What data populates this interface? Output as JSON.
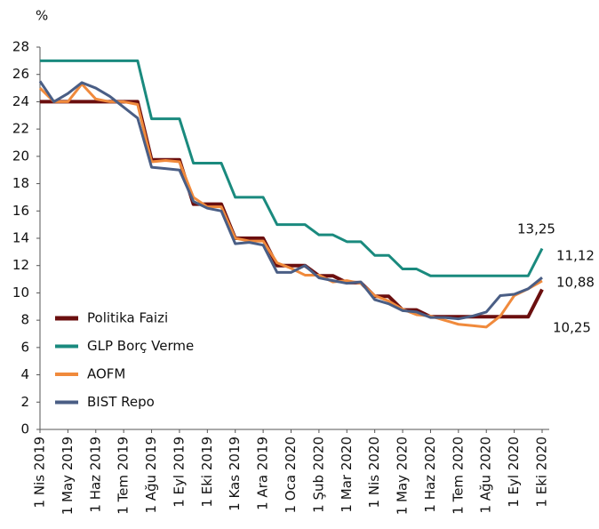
{
  "chart_data": {
    "type": "line",
    "y_label": "%",
    "categories": [
      "1 Nis 2019",
      null,
      "1 May 2019",
      null,
      "1 Haz 2019",
      null,
      "1 Tem 2019",
      null,
      "1 Ağu 2019",
      null,
      "1 Eyl 2019",
      null,
      "1 Eki 2019",
      null,
      "1 Kas 2019",
      null,
      "1 Ara 2019",
      null,
      "1 Oca 2020",
      null,
      "1 Şub 2020",
      null,
      "1 Mar 2020",
      null,
      "1 Nis 2020",
      null,
      "1 May 2020",
      null,
      "1 Haz 2020",
      null,
      "1 Tem 2020",
      null,
      "1 Ağu 2020",
      null,
      "1 Eyl 2020",
      null,
      "1 Eki 2020"
    ],
    "series": [
      {
        "name": "Politika Faizi",
        "color": "#6b0f0f",
        "width": 4,
        "values": [
          24,
          24,
          24,
          24,
          24,
          24,
          24,
          24,
          19.75,
          19.75,
          19.75,
          16.5,
          16.5,
          16.5,
          14,
          14,
          14,
          12,
          12,
          12,
          11.25,
          11.25,
          10.75,
          10.75,
          9.75,
          9.75,
          8.75,
          8.75,
          8.25,
          8.25,
          8.25,
          8.25,
          8.25,
          8.25,
          8.25,
          8.25,
          10.25
        ],
        "value_labels": [
          null,
          null,
          null,
          null,
          null,
          null,
          null,
          null,
          null,
          null,
          null,
          null,
          null,
          null,
          null,
          null,
          null,
          null,
          null,
          null,
          null,
          null,
          null,
          null,
          null,
          null,
          null,
          null,
          null,
          null,
          null,
          null,
          null,
          null,
          null,
          null,
          "10,25"
        ]
      },
      {
        "name": "GLP Borç Verme",
        "color": "#1a8a7e",
        "width": 3,
        "values": [
          27,
          27,
          27,
          27,
          27,
          27,
          27,
          27,
          22.75,
          22.75,
          22.75,
          19.5,
          19.5,
          19.5,
          17,
          17,
          17,
          15,
          15,
          15,
          14.25,
          14.25,
          13.75,
          13.75,
          12.75,
          12.75,
          11.75,
          11.75,
          11.25,
          11.25,
          11.25,
          11.25,
          11.25,
          11.25,
          11.25,
          11.25,
          13.25
        ],
        "value_labels": [
          null,
          null,
          null,
          null,
          null,
          null,
          null,
          null,
          null,
          null,
          null,
          null,
          null,
          null,
          null,
          null,
          null,
          null,
          null,
          null,
          null,
          null,
          null,
          null,
          null,
          null,
          null,
          null,
          null,
          null,
          null,
          null,
          null,
          null,
          null,
          null,
          "13,25"
        ]
      },
      {
        "name": "AOFM",
        "color": "#f08a3c",
        "width": 3,
        "values": [
          25,
          24,
          24,
          25.3,
          24.2,
          24,
          24,
          23.8,
          19.6,
          19.7,
          19.6,
          17,
          16.3,
          16.3,
          14,
          13.8,
          13.8,
          12.2,
          11.8,
          11.3,
          11.3,
          10.8,
          10.9,
          10.7,
          9.8,
          9.4,
          8.8,
          8.4,
          8.3,
          8,
          7.7,
          7.6,
          7.5,
          8.3,
          9.8,
          10.3,
          10.88
        ],
        "value_labels": [
          null,
          null,
          null,
          null,
          null,
          null,
          null,
          null,
          null,
          null,
          null,
          null,
          null,
          null,
          null,
          null,
          null,
          null,
          null,
          null,
          null,
          null,
          null,
          null,
          null,
          null,
          null,
          null,
          null,
          null,
          null,
          null,
          null,
          null,
          null,
          null,
          "10,88"
        ]
      },
      {
        "name": "BIST Repo",
        "color": "#4a5e85",
        "width": 3,
        "values": [
          25.5,
          24,
          24.6,
          25.4,
          25,
          24.4,
          23.6,
          22.8,
          19.2,
          19.1,
          19,
          16.7,
          16.2,
          16,
          13.6,
          13.7,
          13.5,
          11.5,
          11.5,
          12,
          11.1,
          10.9,
          10.7,
          10.8,
          9.5,
          9.2,
          8.7,
          8.6,
          8.2,
          8.2,
          8.1,
          8.3,
          8.6,
          9.8,
          9.9,
          10.3,
          11.12
        ],
        "value_labels": [
          null,
          null,
          null,
          null,
          null,
          null,
          null,
          null,
          null,
          null,
          null,
          null,
          null,
          null,
          null,
          null,
          null,
          null,
          null,
          null,
          null,
          null,
          null,
          null,
          null,
          null,
          null,
          null,
          null,
          null,
          null,
          null,
          null,
          null,
          null,
          null,
          "11,12"
        ]
      }
    ],
    "ylim": [
      0,
      28
    ],
    "yticks": [
      0,
      2,
      4,
      6,
      8,
      10,
      12,
      14,
      16,
      18,
      20,
      22,
      24,
      26,
      28
    ],
    "grid": false,
    "legend": "lower left"
  }
}
